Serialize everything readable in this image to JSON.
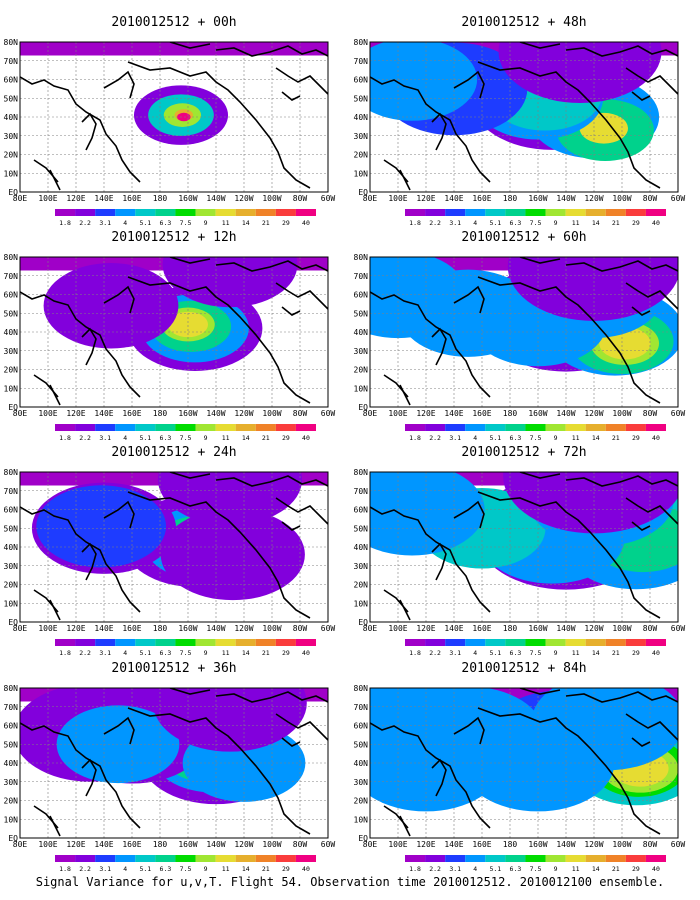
{
  "caption": "Signal Variance for u,v,T. Flight 54. Observation time 2010012512. 2010012100 ensemble.",
  "colorbar": {
    "labels": [
      "1.8",
      "2.2",
      "3.1",
      "4",
      "5.1",
      "6.3",
      "7.5",
      "9",
      "11",
      "14",
      "21",
      "29",
      "40"
    ],
    "colors": [
      "#a000c8",
      "#8200dc",
      "#1e3cff",
      "#0096ff",
      "#00c8c8",
      "#00d28c",
      "#00dc00",
      "#a0e632",
      "#e6dc32",
      "#e6af2d",
      "#f08228",
      "#fa3c3c",
      "#f00082"
    ]
  },
  "axes": {
    "lon_ticks": [
      "80E",
      "100E",
      "120E",
      "140E",
      "160E",
      "180",
      "160W",
      "140W",
      "120W",
      "100W",
      "80W",
      "60W"
    ],
    "lat_ticks": [
      "EQ",
      "10N",
      "20N",
      "30N",
      "40N",
      "50N",
      "60N",
      "70N",
      "80N"
    ]
  },
  "chart_data": [
    {
      "type": "heatmap",
      "title": "2010012512 + 00h",
      "lead_hours": 0,
      "xlim": [
        "80E",
        "60W"
      ],
      "ylim": [
        "EQ",
        "80N"
      ],
      "blobs": [
        {
          "lon": -165,
          "lat": 41,
          "level": 1
        },
        {
          "lon": -165,
          "lat": 41,
          "level": 4
        },
        {
          "lon": -164,
          "lat": 41,
          "level": 7
        },
        {
          "lon": -163,
          "lat": 41,
          "level": 9
        },
        {
          "lon": -163,
          "lat": 40,
          "level": 12
        }
      ]
    },
    {
      "type": "heatmap",
      "title": "2010012512 + 12h",
      "lead_hours": 12,
      "xlim": [
        "80E",
        "60W"
      ],
      "ylim": [
        "EQ",
        "80N"
      ],
      "blobs": [
        {
          "lon": -155,
          "lat": 42,
          "level": 1
        },
        {
          "lon": -155,
          "lat": 42,
          "level": 3
        },
        {
          "lon": -158,
          "lat": 43,
          "level": 5
        },
        {
          "lon": -160,
          "lat": 44,
          "level": 7
        },
        {
          "lon": -160,
          "lat": 44,
          "level": 8
        },
        {
          "lon": 145,
          "lat": 54,
          "level": 1
        },
        {
          "lon": -130,
          "lat": 76,
          "level": 1
        }
      ]
    },
    {
      "type": "heatmap",
      "title": "2010012512 + 24h",
      "lead_hours": 24,
      "xlim": [
        "80E",
        "60W"
      ],
      "ylim": [
        "EQ",
        "80N"
      ],
      "blobs": [
        {
          "lon": -155,
          "lat": 43,
          "level": 1
        },
        {
          "lon": -150,
          "lat": 42,
          "level": 3
        },
        {
          "lon": -152,
          "lat": 42,
          "level": 5
        },
        {
          "lon": -155,
          "lat": 43,
          "level": 7
        },
        {
          "lon": 140,
          "lat": 50,
          "level": 1
        },
        {
          "lon": 138,
          "lat": 51,
          "level": 2
        },
        {
          "lon": -128,
          "lat": 36,
          "level": 1
        },
        {
          "lon": -130,
          "lat": 76,
          "level": 1
        }
      ]
    },
    {
      "type": "heatmap",
      "title": "2010012512 + 36h",
      "lead_hours": 36,
      "xlim": [
        "80E",
        "60W"
      ],
      "ylim": [
        "EQ",
        "80N"
      ],
      "blobs": [
        {
          "lon": -140,
          "lat": 44,
          "level": 1
        },
        {
          "lon": -142,
          "lat": 45,
          "level": 3
        },
        {
          "lon": -145,
          "lat": 45,
          "level": 5
        },
        {
          "lon": -146,
          "lat": 46,
          "level": 7
        },
        {
          "lon": 160,
          "lat": 55,
          "level": 1
        },
        {
          "lon": 130,
          "lat": 56,
          "level": 1
        },
        {
          "lon": 150,
          "lat": 50,
          "level": 3
        },
        {
          "lon": -120,
          "lat": 40,
          "level": 3
        },
        {
          "lon": -130,
          "lat": 72,
          "level": 1
        }
      ]
    },
    {
      "type": "heatmap",
      "title": "2010012512 + 48h",
      "lead_hours": 48,
      "xlim": [
        "80E",
        "60W"
      ],
      "ylim": [
        "EQ",
        "80N"
      ],
      "blobs": [
        {
          "lon": -150,
          "lat": 50,
          "level": 1
        },
        {
          "lon": -120,
          "lat": 40,
          "level": 3
        },
        {
          "lon": -112,
          "lat": 33,
          "level": 5
        },
        {
          "lon": -113,
          "lat": 34,
          "level": 8
        },
        {
          "lon": -160,
          "lat": 50,
          "level": 3
        },
        {
          "lon": -155,
          "lat": 52,
          "level": 4
        },
        {
          "lon": 140,
          "lat": 55,
          "level": 2
        },
        {
          "lon": 110,
          "lat": 60,
          "level": 3
        },
        {
          "lon": -130,
          "lat": 75,
          "level": 1
        }
      ]
    },
    {
      "type": "heatmap",
      "title": "2010012512 + 60h",
      "lead_hours": 60,
      "xlim": [
        "80E",
        "60W"
      ],
      "ylim": [
        "EQ",
        "80N"
      ],
      "blobs": [
        {
          "lon": -140,
          "lat": 48,
          "level": 1
        },
        {
          "lon": -105,
          "lat": 40,
          "level": 3
        },
        {
          "lon": -100,
          "lat": 35,
          "level": 5
        },
        {
          "lon": -98,
          "lat": 34,
          "level": 7
        },
        {
          "lon": -98,
          "lat": 34,
          "level": 8
        },
        {
          "lon": 100,
          "lat": 60,
          "level": 3
        },
        {
          "lon": 150,
          "lat": 50,
          "level": 3
        },
        {
          "lon": -160,
          "lat": 45,
          "level": 3
        },
        {
          "lon": -120,
          "lat": 60,
          "level": 3
        },
        {
          "lon": -120,
          "lat": 75,
          "level": 1
        }
      ]
    },
    {
      "type": "heatmap",
      "title": "2010012512 + 72h",
      "lead_hours": 72,
      "xlim": [
        "80E",
        "60W"
      ],
      "ylim": [
        "EQ",
        "80N"
      ],
      "blobs": [
        {
          "lon": -140,
          "lat": 48,
          "level": 1
        },
        {
          "lon": -90,
          "lat": 42,
          "level": 3
        },
        {
          "lon": -80,
          "lat": 50,
          "level": 4
        },
        {
          "lon": -85,
          "lat": 45,
          "level": 5
        },
        {
          "lon": -150,
          "lat": 45,
          "level": 3
        },
        {
          "lon": 160,
          "lat": 50,
          "level": 4
        },
        {
          "lon": 110,
          "lat": 60,
          "level": 3
        },
        {
          "lon": -115,
          "lat": 65,
          "level": 3
        },
        {
          "lon": -120,
          "lat": 78,
          "level": 1
        }
      ]
    },
    {
      "type": "heatmap",
      "title": "2010012512 + 84h",
      "lead_hours": 84,
      "xlim": [
        "80E",
        "60W"
      ],
      "ylim": [
        "EQ",
        "80N"
      ],
      "blobs": [
        {
          "lon": -140,
          "lat": 50,
          "level": 2
        },
        {
          "lon": -90,
          "lat": 40,
          "level": 4
        },
        {
          "lon": -88,
          "lat": 38,
          "level": 6
        },
        {
          "lon": -87,
          "lat": 37,
          "level": 7
        },
        {
          "lon": -87,
          "lat": 37,
          "level": 8
        },
        {
          "lon": 100,
          "lat": 65,
          "level": 3
        },
        {
          "lon": 150,
          "lat": 55,
          "level": 3
        },
        {
          "lon": -160,
          "lat": 40,
          "level": 3
        },
        {
          "lon": -110,
          "lat": 62,
          "level": 3
        },
        {
          "lon": 120,
          "lat": 40,
          "level": 3
        }
      ]
    }
  ]
}
